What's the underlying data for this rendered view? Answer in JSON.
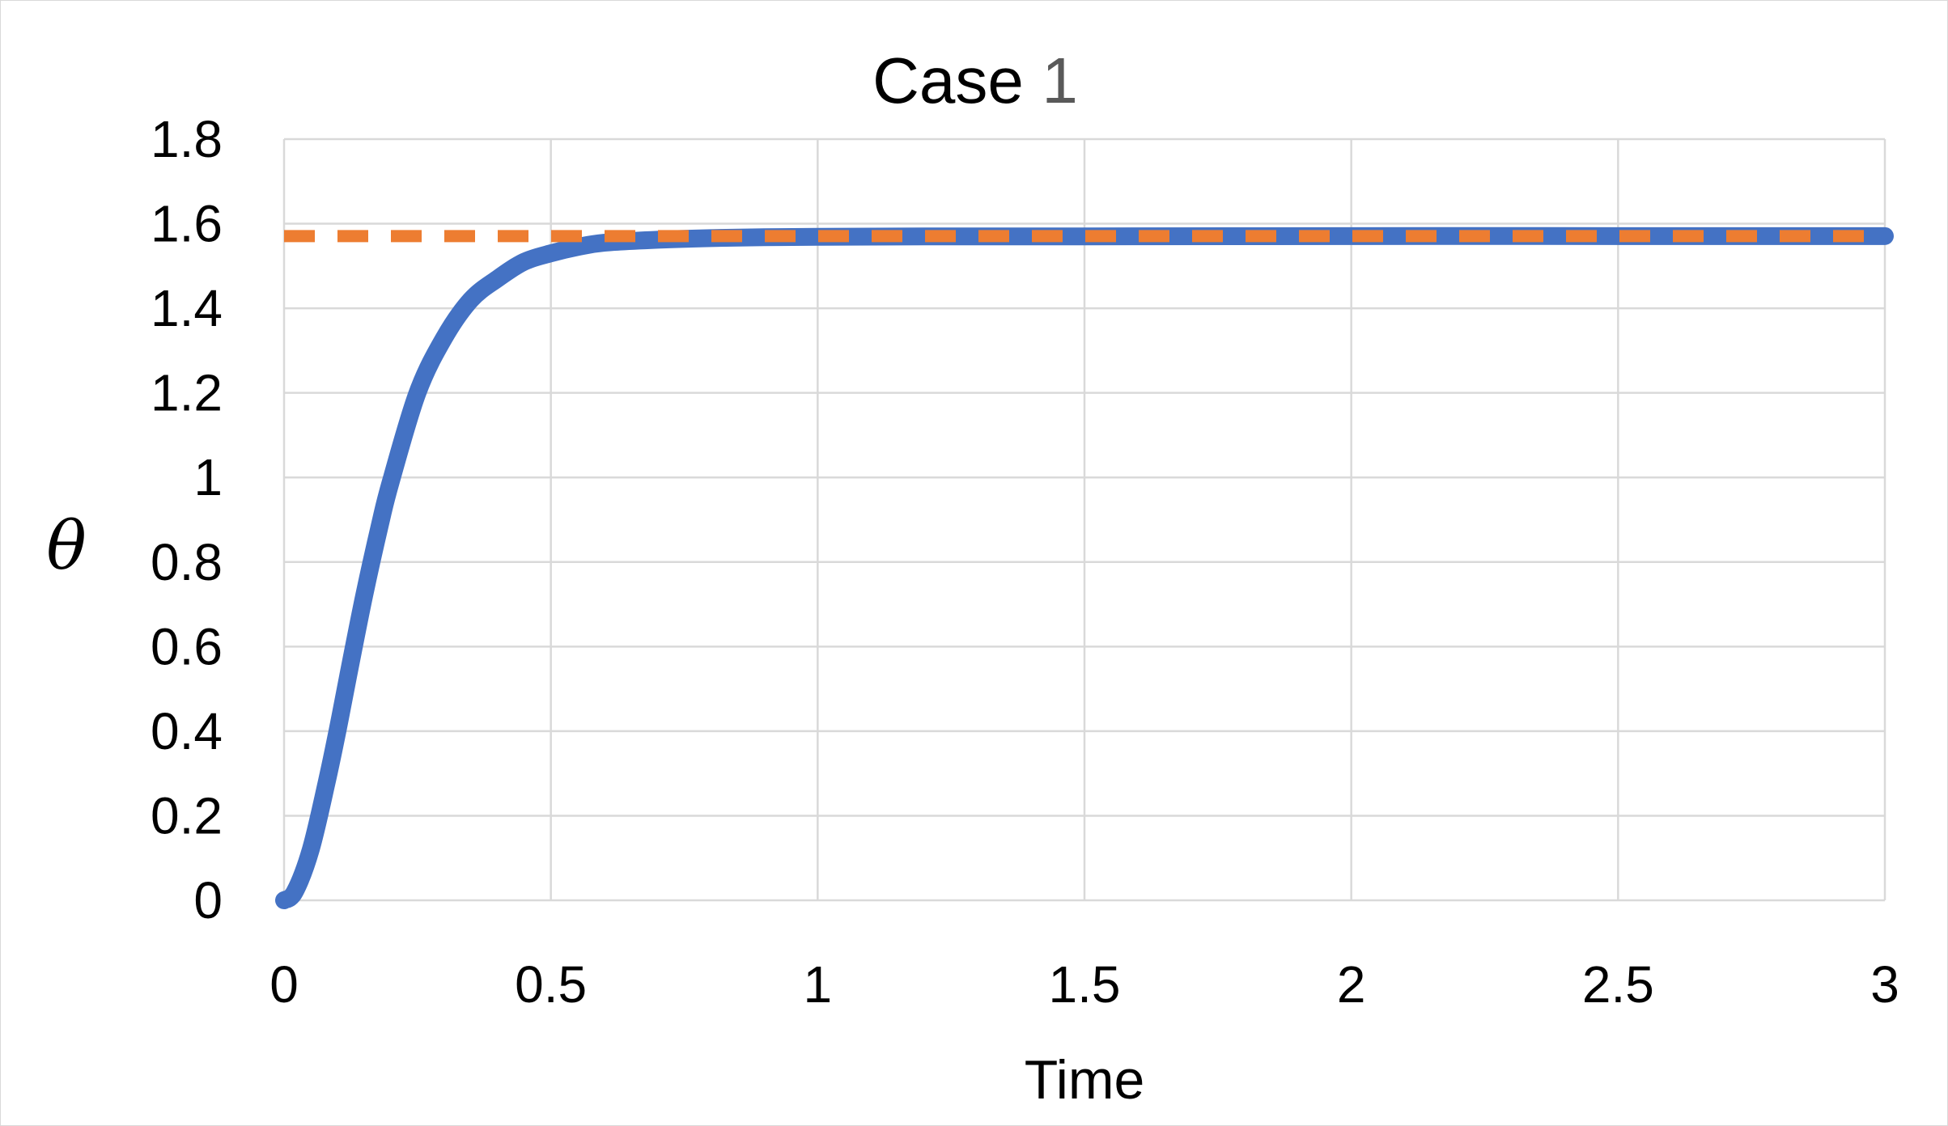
{
  "chart_data": {
    "type": "line",
    "title": "Case",
    "title_number": "1",
    "xlabel": "Time",
    "ylabel": "θ",
    "xlim": [
      0,
      3
    ],
    "ylim": [
      0,
      1.8
    ],
    "x_ticks": [
      0,
      0.5,
      1,
      1.5,
      2,
      2.5,
      3
    ],
    "x_tick_labels": [
      "0",
      "0.5",
      "1",
      "1.5",
      "2",
      "2.5",
      "3"
    ],
    "y_ticks": [
      0,
      0.2,
      0.4,
      0.6,
      0.8,
      1,
      1.2,
      1.4,
      1.6,
      1.8
    ],
    "y_tick_labels": [
      "0",
      "0.2",
      "0.4",
      "0.6",
      "0.8",
      "1",
      "1.2",
      "1.4",
      "1.6",
      "1.8"
    ],
    "grid": true,
    "series": [
      {
        "style": "solid-thick",
        "color": "#4472c4",
        "x": [
          0,
          0.02,
          0.05,
          0.08,
          0.1,
          0.12,
          0.15,
          0.18,
          0.2,
          0.25,
          0.3,
          0.35,
          0.4,
          0.45,
          0.5,
          0.55,
          0.6,
          0.7,
          0.8,
          0.9,
          1.0,
          1.2,
          1.5,
          2.0,
          2.5,
          3.0
        ],
        "y": [
          0,
          0.02,
          0.12,
          0.28,
          0.4,
          0.53,
          0.72,
          0.89,
          0.99,
          1.2,
          1.33,
          1.42,
          1.47,
          1.51,
          1.53,
          1.545,
          1.555,
          1.562,
          1.566,
          1.568,
          1.569,
          1.57,
          1.57,
          1.5708,
          1.5708,
          1.5708
        ]
      },
      {
        "style": "dashed",
        "color": "#ed7d31",
        "x": [
          0,
          3
        ],
        "y": [
          1.5708,
          1.5708
        ]
      }
    ]
  }
}
